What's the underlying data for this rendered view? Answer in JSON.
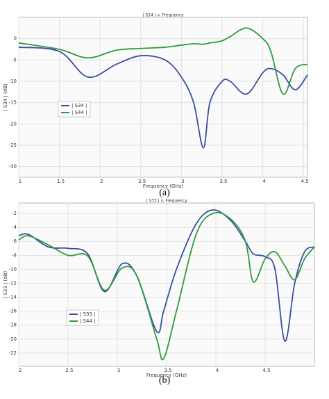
{
  "chart_data": [
    {
      "type": "line",
      "title": "| S34 | v. Frequency",
      "x_label": "Frequency (GHz)",
      "y_label": "| S34 | (dB)",
      "caption": "(a)",
      "x": [
        1.0,
        1.5,
        1.85,
        2.2,
        2.5,
        2.8,
        3.0,
        3.15,
        3.27,
        3.35,
        3.5,
        3.6,
        3.8,
        4.0,
        4.1,
        4.25,
        4.4,
        4.55
      ],
      "series": [
        {
          "name": "| S34 |",
          "color": "#3a4ea0",
          "values": [
            -2,
            -3,
            -9,
            -6,
            -4,
            -5,
            -9,
            -15,
            -25.6,
            -15,
            -10,
            -10,
            -13,
            -8,
            -7,
            -8.5,
            -12,
            -8.5
          ]
        },
        {
          "name": "| S44 |",
          "color": "#2e9a3c",
          "values": [
            -1,
            -2.5,
            -4.5,
            -2.7,
            -2.3,
            -2,
            -1.5,
            -1.2,
            -1.3,
            -1,
            -0.5,
            0.5,
            2.5,
            0,
            -3,
            -13,
            -7,
            -6
          ]
        }
      ],
      "xlim": [
        1,
        4.55
      ],
      "xticks": [
        1,
        1.5,
        2,
        2.5,
        3,
        3.5,
        4,
        4.5
      ],
      "ylim": [
        -32.5,
        5
      ],
      "yticks": [
        0,
        -5,
        -10,
        -15,
        -20,
        -25,
        -30
      ],
      "grid": true
    },
    {
      "type": "line",
      "title": "| S33 | v. Frequency",
      "x_label": "Frequency (GHz)",
      "y_label": "| S33 | (dB)",
      "caption": "(b)",
      "x": [
        2.0,
        2.1,
        2.3,
        2.5,
        2.7,
        2.87,
        3.05,
        3.2,
        3.4,
        3.47,
        3.6,
        3.8,
        3.97,
        4.15,
        4.3,
        4.38,
        4.5,
        4.6,
        4.7,
        4.8,
        4.9,
        5.0
      ],
      "series": [
        {
          "name": "| S33 |",
          "color": "#3a4ea0",
          "values": [
            -5.2,
            -5,
            -6.8,
            -7,
            -7.8,
            -13.2,
            -9.2,
            -11,
            -18.9,
            -16,
            -10,
            -3.5,
            -1.5,
            -3,
            -6,
            -7.8,
            -8.2,
            -10,
            -20.3,
            -12,
            -7.5,
            -6.8
          ]
        },
        {
          "name": "| S44 |",
          "color": "#2e9a3c",
          "values": [
            -5.8,
            -5.2,
            -6.5,
            -8,
            -8.1,
            -13,
            -9.8,
            -11,
            -20,
            -22.8,
            -16,
            -5,
            -2,
            -2.8,
            -6,
            -11.8,
            -8.5,
            -7.5,
            -9.5,
            -11.5,
            -8.5,
            -6.8
          ]
        }
      ],
      "xlim": [
        2,
        5
      ],
      "xticks": [
        2,
        2.5,
        3,
        3.5,
        4,
        4.5
      ],
      "ylim": [
        -23.9,
        -0.5
      ],
      "yticks": [
        -2,
        -4,
        -6,
        -8,
        -10,
        -12,
        -14,
        -16,
        -18,
        -20,
        -22
      ],
      "grid": true
    }
  ]
}
